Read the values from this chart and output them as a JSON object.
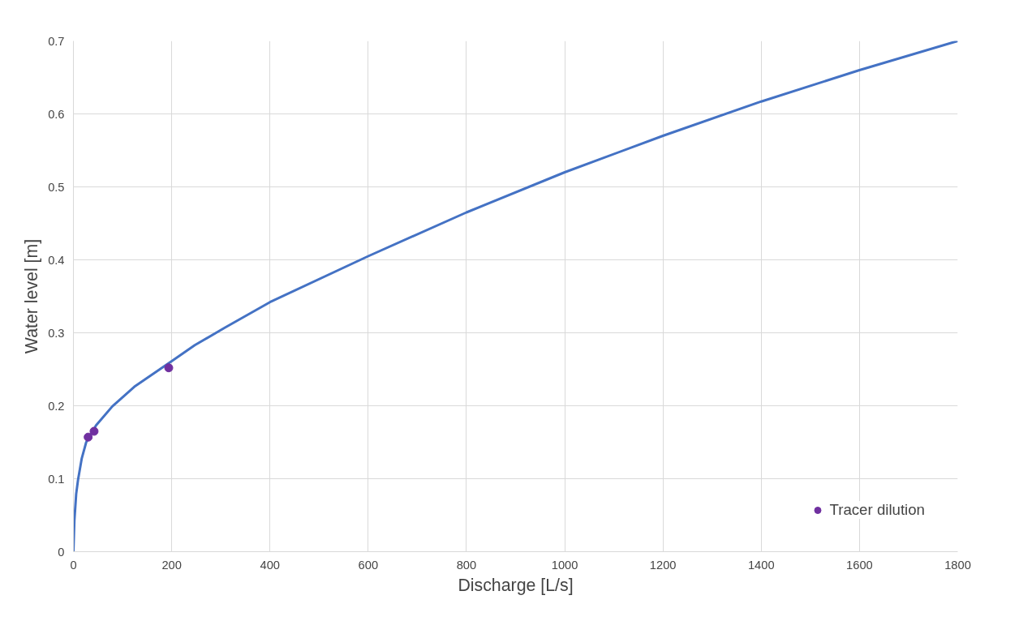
{
  "chart_data": {
    "type": "line",
    "xlabel": "Discharge [L/s]",
    "ylabel": "Water level [m]",
    "xlim": [
      0,
      1800
    ],
    "xticks": [
      0,
      200,
      400,
      600,
      800,
      1000,
      1200,
      1400,
      1600,
      1800
    ],
    "ylim": [
      0,
      0.7
    ],
    "yticks": [
      0,
      0.1,
      0.2,
      0.3,
      0.4,
      0.5,
      0.6,
      0.7
    ],
    "grid": true,
    "legend": "bottom right",
    "series": [
      {
        "color": "#4472c4",
        "marker": "none",
        "x": [
          0,
          1,
          2,
          5.6,
          9.5,
          17,
          26,
          46,
          79,
          124,
          200,
          247,
          308,
          400,
          600,
          800,
          1000,
          1200,
          1400,
          1600,
          1800
        ],
        "values": [
          0,
          0.022,
          0.043,
          0.079,
          0.099,
          0.128,
          0.15,
          0.173,
          0.199,
          0.226,
          0.261,
          0.283,
          0.307,
          0.342,
          0.405,
          0.465,
          0.52,
          0.57,
          0.617,
          0.66,
          0.7
        ]
      },
      {
        "type": "scatter",
        "name": "Tracer dilution",
        "color": "#7030a0",
        "marker": "circle",
        "x": [
          30,
          42,
          194
        ],
        "values": [
          0.157,
          0.165,
          0.252
        ]
      }
    ]
  }
}
